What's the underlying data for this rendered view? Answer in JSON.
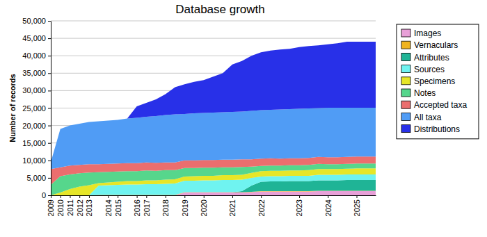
{
  "chart_data": {
    "type": "area",
    "stacked": true,
    "title": "Database growth",
    "y_label": "Number of records",
    "categories": [
      "2009",
      "2010",
      "2011",
      "2012",
      "2013",
      null,
      "2014",
      "2015",
      null,
      "2016",
      "2017",
      null,
      "2018",
      null,
      "2019",
      null,
      "2020",
      null,
      null,
      "2021",
      null,
      null,
      "2022",
      null,
      null,
      null,
      "2023",
      null,
      null,
      "2024",
      null,
      null,
      "2025",
      null,
      null
    ],
    "ylim": [
      0,
      50000
    ],
    "yticks": [
      0,
      {
        "value": 5000,
        "label": "5,000"
      },
      {
        "value": 10000,
        "label": "10,000"
      },
      {
        "value": 15000,
        "label": "15,000"
      },
      {
        "value": 20000,
        "label": "20,000"
      },
      {
        "value": 25000,
        "label": "25,000"
      },
      {
        "value": 30000,
        "label": "30,000"
      },
      {
        "value": 35000,
        "label": "35,000"
      },
      {
        "value": 40000,
        "label": "40,000"
      },
      {
        "value": 45000,
        "label": "45,000"
      },
      {
        "value": 50000,
        "label": "50,000"
      }
    ],
    "grid": true,
    "legend": "right",
    "series": [
      {
        "name": "Images",
        "color": "#e8a0d8",
        "values": [
          0,
          0,
          0,
          0,
          0,
          0,
          0,
          0,
          0,
          0,
          0,
          0,
          0,
          0,
          800,
          800,
          800,
          800,
          800,
          800,
          800,
          900,
          1100,
          1100,
          1100,
          1100,
          1100,
          1100,
          1200,
          1200,
          1200,
          1200,
          1200,
          1200,
          1200
        ]
      },
      {
        "name": "Vernaculars",
        "color": "#f0b41e",
        "values": [
          0,
          0,
          0,
          0,
          0,
          100,
          100,
          100,
          100,
          100,
          100,
          100,
          100,
          100,
          100,
          100,
          100,
          100,
          100,
          100,
          100,
          100,
          100,
          100,
          100,
          100,
          100,
          100,
          100,
          100,
          100,
          100,
          100,
          100,
          100
        ]
      },
      {
        "name": "Attributes",
        "color": "#1fb496",
        "values": [
          0,
          0,
          0,
          0,
          0,
          0,
          0,
          0,
          0,
          0,
          0,
          0,
          0,
          0,
          0,
          0,
          0,
          0,
          0,
          0,
          300,
          1800,
          2700,
          2800,
          2800,
          2900,
          2900,
          2900,
          3000,
          3000,
          3000,
          3100,
          3100,
          3100,
          3100
        ]
      },
      {
        "name": "Sources",
        "color": "#6ff3f0",
        "values": [
          0,
          0,
          0,
          0,
          0,
          2700,
          2800,
          2900,
          3000,
          3000,
          3100,
          3100,
          3200,
          3300,
          3300,
          3300,
          3400,
          3400,
          3500,
          3500,
          3300,
          2200,
          1500,
          1500,
          1500,
          1500,
          1500,
          1500,
          1600,
          1600,
          1600,
          1600,
          1600,
          1600,
          1600
        ]
      },
      {
        "name": "Specimens",
        "color": "#e6e628",
        "values": [
          0,
          800,
          1800,
          2500,
          2900,
          700,
          800,
          900,
          1000,
          1000,
          1100,
          1100,
          1200,
          1200,
          1200,
          1300,
          1300,
          1300,
          1400,
          1400,
          1400,
          1400,
          1500,
          1500,
          1500,
          1500,
          1500,
          1600,
          1600,
          1600,
          1600,
          1600,
          1700,
          1700,
          1700
        ]
      },
      {
        "name": "Notes",
        "color": "#56d68c",
        "values": [
          3000,
          4700,
          4200,
          3800,
          3600,
          3100,
          3000,
          2900,
          2800,
          2800,
          2800,
          2700,
          2700,
          2600,
          2400,
          2300,
          2300,
          2300,
          2200,
          2200,
          2200,
          1800,
          1500,
          1500,
          1500,
          1500,
          1500,
          1500,
          1500,
          1400,
          1400,
          1400,
          1400,
          1400,
          1400
        ]
      },
      {
        "name": "Accepted taxa",
        "color": "#eb6e6e",
        "values": [
          4500,
          2500,
          2500,
          2400,
          2400,
          2300,
          2300,
          2300,
          2300,
          2300,
          2300,
          2300,
          2200,
          2200,
          2200,
          2200,
          2200,
          2200,
          2200,
          2200,
          2200,
          2100,
          2100,
          2100,
          2000,
          2000,
          2000,
          2000,
          2000,
          2000,
          2000,
          2000,
          2000,
          2000,
          2000
        ]
      },
      {
        "name": "All taxa",
        "color": "#509cf5",
        "values": [
          2000,
          11000,
          11500,
          11800,
          12100,
          12300,
          12400,
          12500,
          12800,
          13000,
          13100,
          13400,
          13600,
          13800,
          13300,
          13500,
          13500,
          13600,
          13600,
          13700,
          13700,
          13900,
          13900,
          13900,
          14100,
          14100,
          14200,
          14200,
          14000,
          14200,
          14200,
          14100,
          14000,
          14000,
          14000
        ]
      },
      {
        "name": "Distributions",
        "color": "#2830e8",
        "values": [
          0,
          0,
          0,
          0,
          0,
          0,
          0,
          0,
          0,
          3300,
          4000,
          4800,
          6000,
          7800,
          8500,
          9000,
          9400,
          10300,
          11200,
          13600,
          14500,
          15800,
          16600,
          17000,
          17200,
          17300,
          17700,
          17900,
          18000,
          18200,
          18500,
          18900,
          18900,
          18900,
          18900
        ]
      }
    ]
  }
}
